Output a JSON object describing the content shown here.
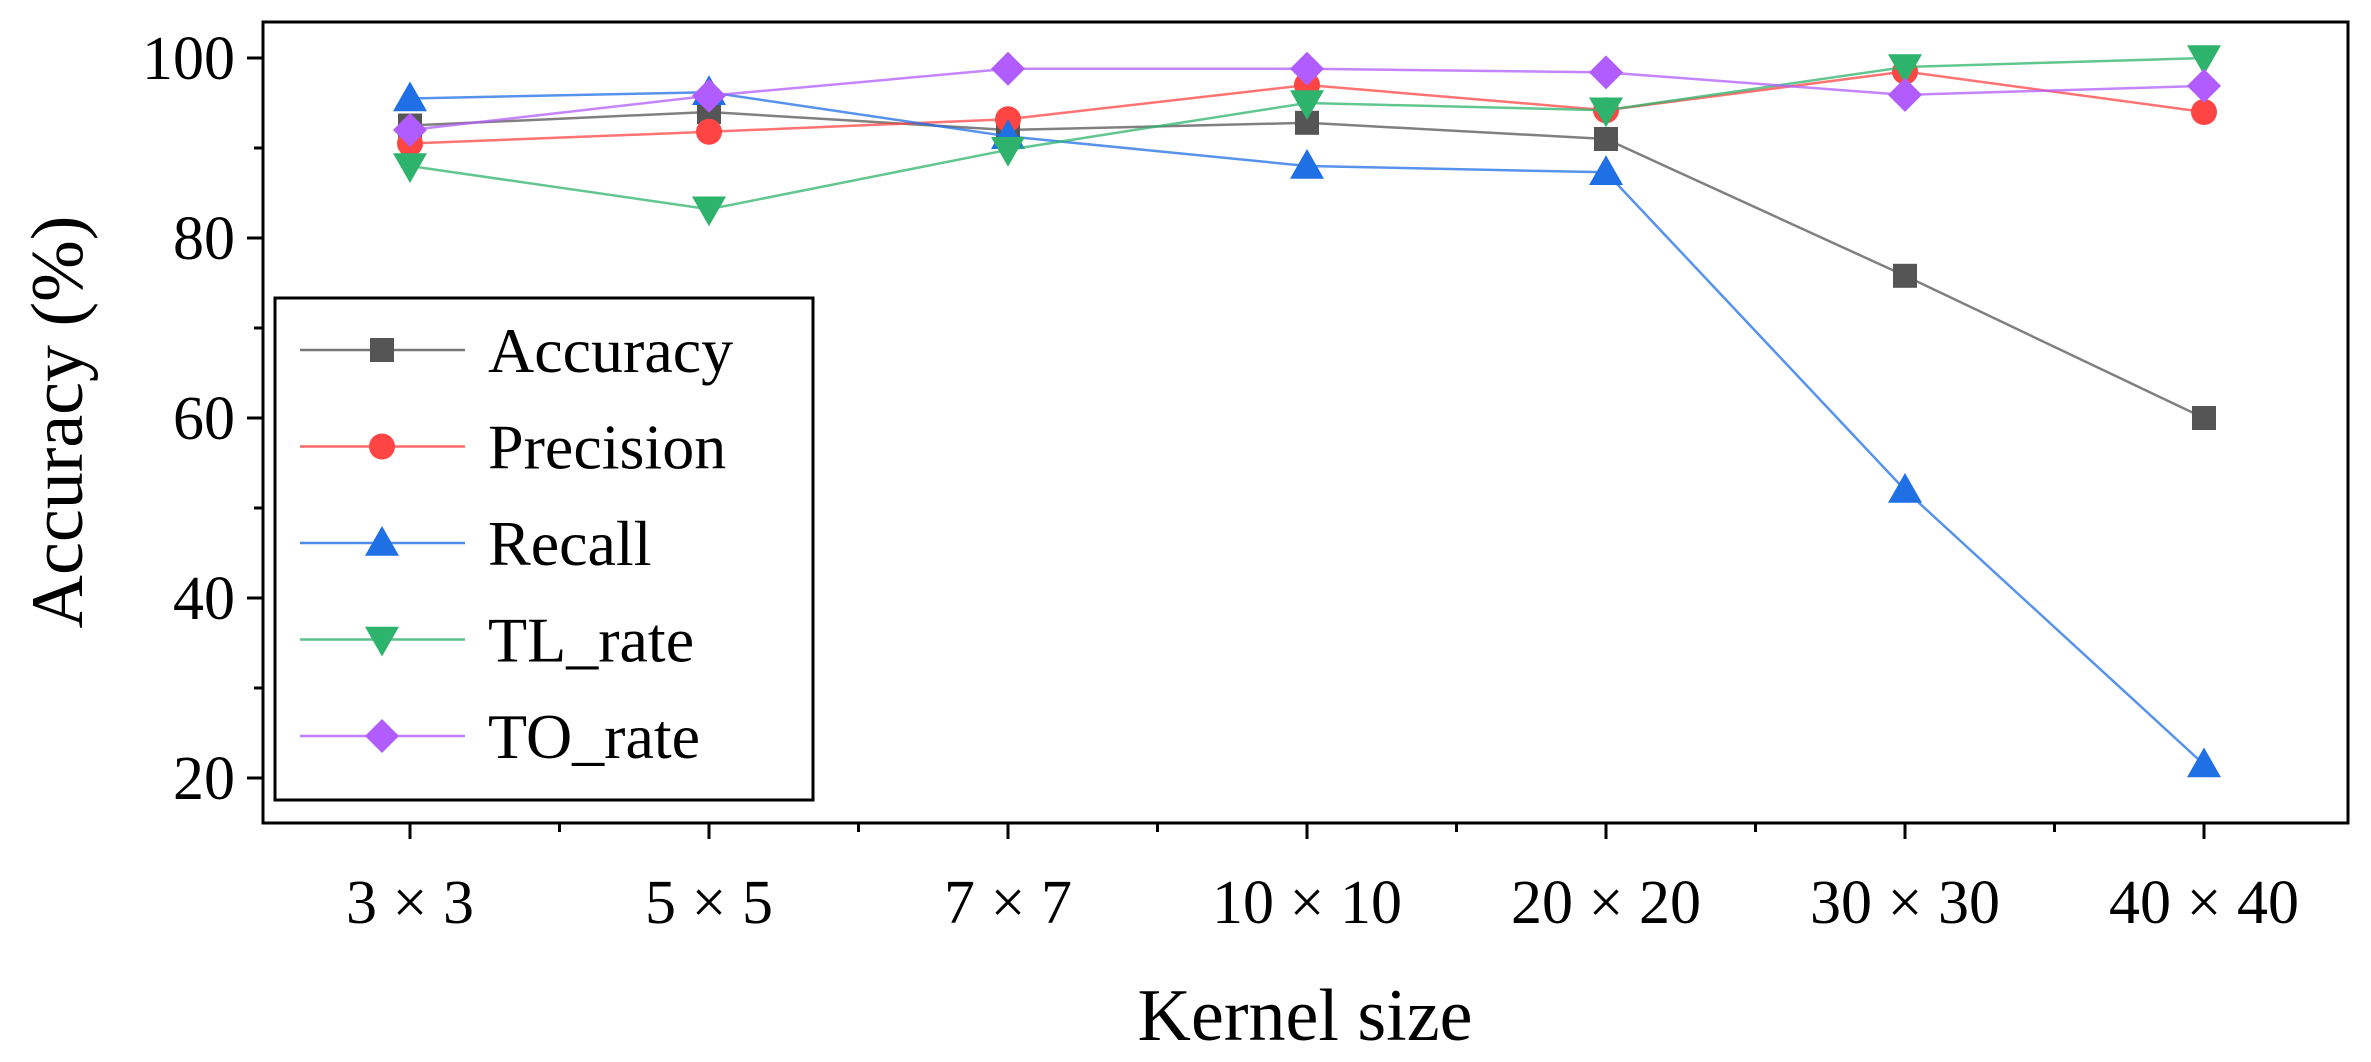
{
  "chart_data": {
    "type": "line",
    "title": "",
    "xlabel": "Kernel size",
    "ylabel": "Accuracy (%)",
    "categories": [
      "3 × 3",
      "5 × 5",
      "7 × 7",
      "10 × 10",
      "20 × 20",
      "30 × 30",
      "40 × 40"
    ],
    "ylim": [
      15,
      104
    ],
    "yticks": [
      20,
      40,
      60,
      80,
      100
    ],
    "grid": false,
    "legend_position": "left",
    "series": [
      {
        "name": "Accuracy",
        "color": "#555555",
        "marker": "square",
        "values": [
          92.5,
          94,
          92,
          92.8,
          91,
          75.8,
          60
        ]
      },
      {
        "name": "Precision",
        "color": "#ff4444",
        "marker": "circle",
        "values": [
          90.5,
          91.8,
          93.2,
          97,
          94.2,
          98.5,
          94
        ]
      },
      {
        "name": "Recall",
        "color": "#1f6fe5",
        "marker": "triangle-up",
        "values": [
          95.5,
          96.2,
          91.3,
          88,
          87.3,
          52,
          21.5
        ]
      },
      {
        "name": "TL_rate",
        "color": "#2db36b",
        "marker": "triangle-down",
        "values": [
          88,
          83.2,
          89.8,
          95,
          94.2,
          99,
          100
        ]
      },
      {
        "name": "TO_rate",
        "color": "#b05cff",
        "marker": "diamond",
        "values": [
          92,
          95.8,
          98.8,
          98.8,
          98.4,
          95.9,
          96.9
        ]
      }
    ]
  }
}
